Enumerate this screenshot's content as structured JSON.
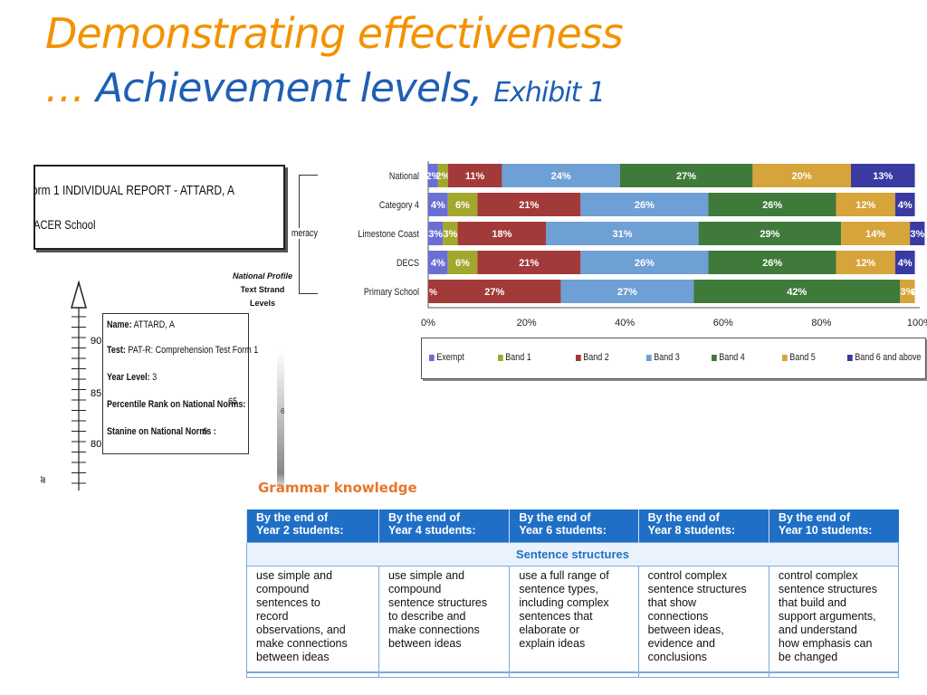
{
  "title": {
    "line1": "Demonstrating effectiveness",
    "ellipsis": "…",
    "line2_main": "Achievement levels,",
    "line2_small": "Exhibit 1"
  },
  "report": {
    "title": "orm 1 INDIVIDUAL REPORT - ATTARD, A",
    "school": "ACER School",
    "profile_label_lines": [
      "National Profile",
      "Text Strand",
      "Levels"
    ],
    "scale_labels": [
      "90",
      "85",
      "80"
    ],
    "fields": [
      {
        "label": "Name:",
        "value": "ATTARD, A"
      },
      {
        "label": "Test:",
        "value": "PAT-R: Comprehension Test Form 1"
      },
      {
        "label": "Year Level:",
        "value": "3"
      },
      {
        "label": "Percentile Rank on National Norms:",
        "value": "65"
      },
      {
        "label": "Stanine on National Norms :",
        "value": "6"
      }
    ],
    "axis_glyph": "6"
  },
  "chart_data": {
    "type": "bar",
    "orientation": "horizontal",
    "stacked": true,
    "categories": [
      "National",
      "Category 4",
      "Limestone Coast",
      "DECS",
      "Primary School"
    ],
    "group_label": "meracy",
    "xlim": [
      0,
      100
    ],
    "x_ticks": [
      "0%",
      "20%",
      "40%",
      "60%",
      "80%",
      "100%"
    ],
    "legend_position": "bottom",
    "series": [
      {
        "name": "Exempt",
        "color": "#6a6fd4",
        "values": [
          2,
          4,
          3,
          4,
          0
        ],
        "labels": [
          "2%",
          "4%",
          "3%",
          "4%",
          ""
        ]
      },
      {
        "name": "Band 1",
        "color": "#a3a82c",
        "values": [
          2,
          6,
          3,
          6,
          0
        ],
        "labels": [
          "2%",
          "6%",
          "3%",
          "6%",
          ""
        ]
      },
      {
        "name": "Band 2",
        "color": "#a33a3a",
        "values": [
          11,
          21,
          18,
          21,
          27
        ],
        "labels": [
          "11%",
          "21%",
          "18%",
          "21%",
          "27%"
        ]
      },
      {
        "name": "Band 3",
        "color": "#6ea0d6",
        "values": [
          24,
          26,
          31,
          26,
          27
        ],
        "labels": [
          "24%",
          "26%",
          "31%",
          "26%",
          "27%"
        ]
      },
      {
        "name": "Band 4",
        "color": "#3f7a3a",
        "values": [
          27,
          26,
          29,
          26,
          42
        ],
        "labels": [
          "27%",
          "26%",
          "29%",
          "26%",
          "42%"
        ]
      },
      {
        "name": "Band 5",
        "color": "#d6a43a",
        "values": [
          20,
          12,
          14,
          12,
          3
        ],
        "labels": [
          "20%",
          "12%",
          "14%",
          "12%",
          "3%"
        ]
      },
      {
        "name": "Band 6 and above",
        "color": "#3a3aa3",
        "values": [
          13,
          4,
          3,
          4,
          0
        ],
        "labels": [
          "13%",
          "4%",
          "3%",
          "4%",
          ""
        ]
      }
    ],
    "extra_labels": [
      {
        "category": "Primary School",
        "text": "%"
      },
      {
        "category": "Primary School",
        "text": "0%"
      }
    ]
  },
  "grammar": {
    "title": "Grammar knowledge",
    "headers": [
      {
        "l1": "By the end of",
        "l2": "Year 2  students:"
      },
      {
        "l1": "By the end of",
        "l2": "Year 4  students:"
      },
      {
        "l1": "By the end of",
        "l2": "Year 6  students:"
      },
      {
        "l1": "By the end of",
        "l2": "Year 8 students:"
      },
      {
        "l1": "By the end of",
        "l2": "Year 10 students:"
      }
    ],
    "subheading": "Sentence structures",
    "cells": [
      [
        "use simple and",
        "compound",
        "sentences to",
        "record",
        "observations, and",
        "make connections",
        "between ideas"
      ],
      [
        "use simple and",
        "compound",
        "sentence structures",
        "to describe and",
        "make connections",
        "between ideas"
      ],
      [
        "use a full range of",
        "sentence types,",
        "including complex",
        "sentences that",
        "elaborate or",
        "explain ideas"
      ],
      [
        "control complex",
        "sentence structures",
        "that show",
        "connections",
        "between ideas,",
        "evidence and",
        "conclusions"
      ],
      [
        "control complex",
        "sentence structures",
        "that build and",
        "support arguments,",
        "and understand",
        "how emphasis can",
        "be changed"
      ]
    ]
  }
}
